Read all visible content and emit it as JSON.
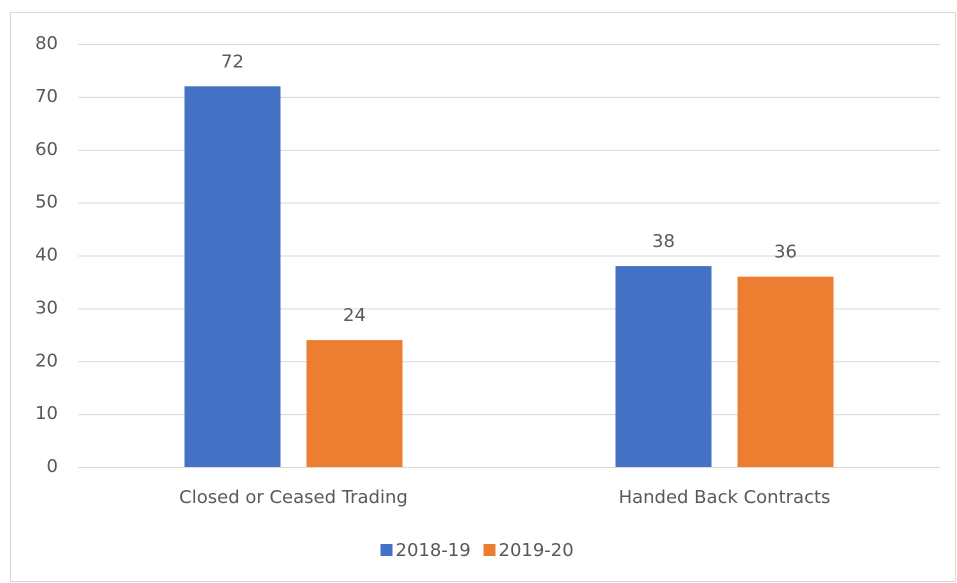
{
  "chart_data": {
    "type": "bar",
    "categories": [
      "Closed or Ceased Trading",
      "Handed Back Contracts"
    ],
    "series": [
      {
        "name": "2018-19",
        "color": "#4472c4",
        "values": [
          72,
          38
        ]
      },
      {
        "name": "2019-20",
        "color": "#ed7d31",
        "values": [
          24,
          36
        ]
      }
    ],
    "ylim": [
      0,
      80
    ],
    "yticks": [
      0,
      10,
      20,
      30,
      40,
      50,
      60,
      70,
      80
    ],
    "grid": true,
    "legend": "bottom",
    "data_labels": true
  }
}
